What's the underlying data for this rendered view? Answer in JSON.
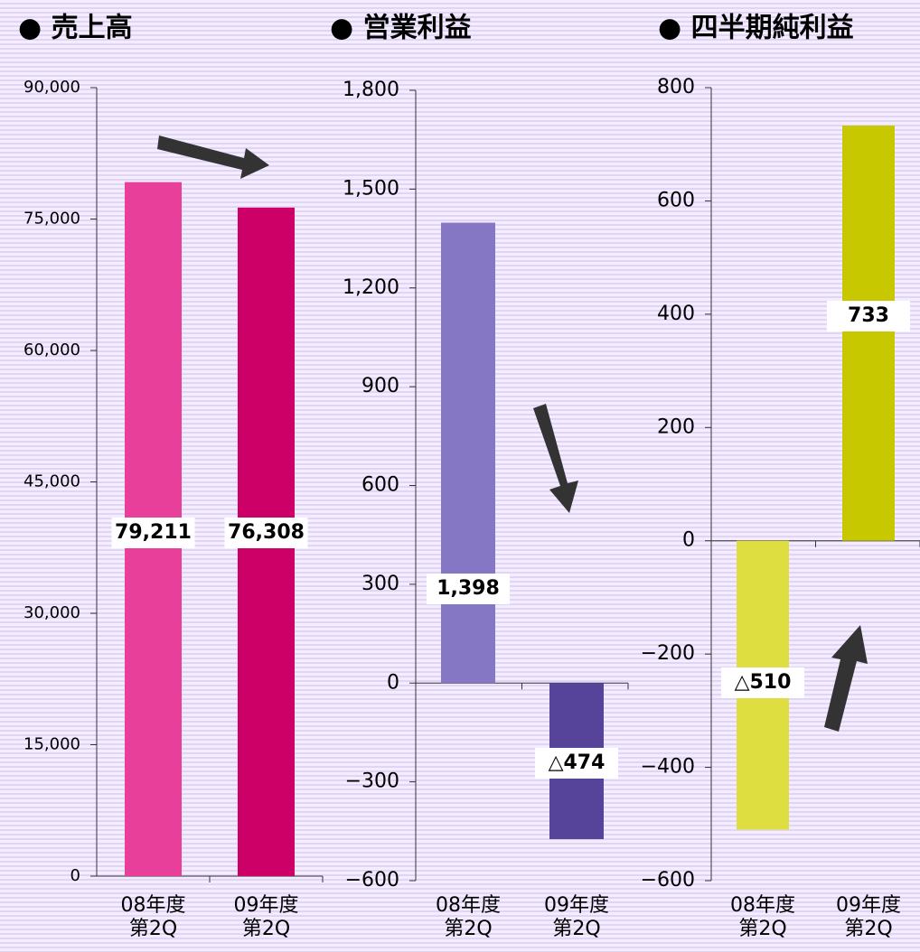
{
  "chart_data": [
    {
      "type": "bar",
      "title": "● 売上高",
      "categories": [
        [
          "08年度",
          "第2Q"
        ],
        [
          "09年度",
          "第2Q"
        ]
      ],
      "values": [
        79211,
        76308
      ],
      "value_labels": [
        "79,211",
        "76,308"
      ],
      "colors": [
        "#e8409a",
        "#cc0066"
      ],
      "ylim": [
        0,
        90000
      ],
      "yticks": [
        0,
        {
          "value": 15000,
          "label": "15,000"
        },
        {
          "value": 30000,
          "label": "30,000"
        },
        {
          "value": 45000,
          "label": "45,000"
        },
        {
          "value": 60000,
          "label": "60,000"
        },
        {
          "value": 75000,
          "label": "75,000"
        },
        {
          "value": 90000,
          "label": "90,000"
        }
      ]
    },
    {
      "type": "bar",
      "title": "● 営業利益",
      "categories": [
        [
          "08年度",
          "第2Q"
        ],
        [
          "09年度",
          "第2Q"
        ]
      ],
      "values": [
        1398,
        -474
      ],
      "value_labels": [
        "1,398",
        "△474"
      ],
      "colors": [
        "#8577c4",
        "#554499"
      ],
      "ylim": [
        -600,
        1800
      ],
      "yticks": [
        {
          "value": -600,
          "label": "−600"
        },
        {
          "value": -300,
          "label": "−300"
        },
        0,
        300,
        600,
        900,
        {
          "value": 1200,
          "label": "1,200"
        },
        {
          "value": 1500,
          "label": "1,500"
        },
        {
          "value": 1800,
          "label": "1,800"
        }
      ]
    },
    {
      "type": "bar",
      "title": "● 四半期純利益",
      "categories": [
        [
          "08年度",
          "第2Q"
        ],
        [
          "09年度",
          "第2Q"
        ]
      ],
      "values": [
        -510,
        733
      ],
      "value_labels": [
        "△510",
        "733"
      ],
      "colors": [
        "#dede40",
        "#c8c800"
      ],
      "ylim": [
        -600,
        800
      ],
      "yticks": [
        {
          "value": -600,
          "label": "−600"
        },
        {
          "value": -400,
          "label": "−400"
        },
        {
          "value": -200,
          "label": "−200"
        },
        0,
        200,
        400,
        600,
        800
      ]
    }
  ]
}
